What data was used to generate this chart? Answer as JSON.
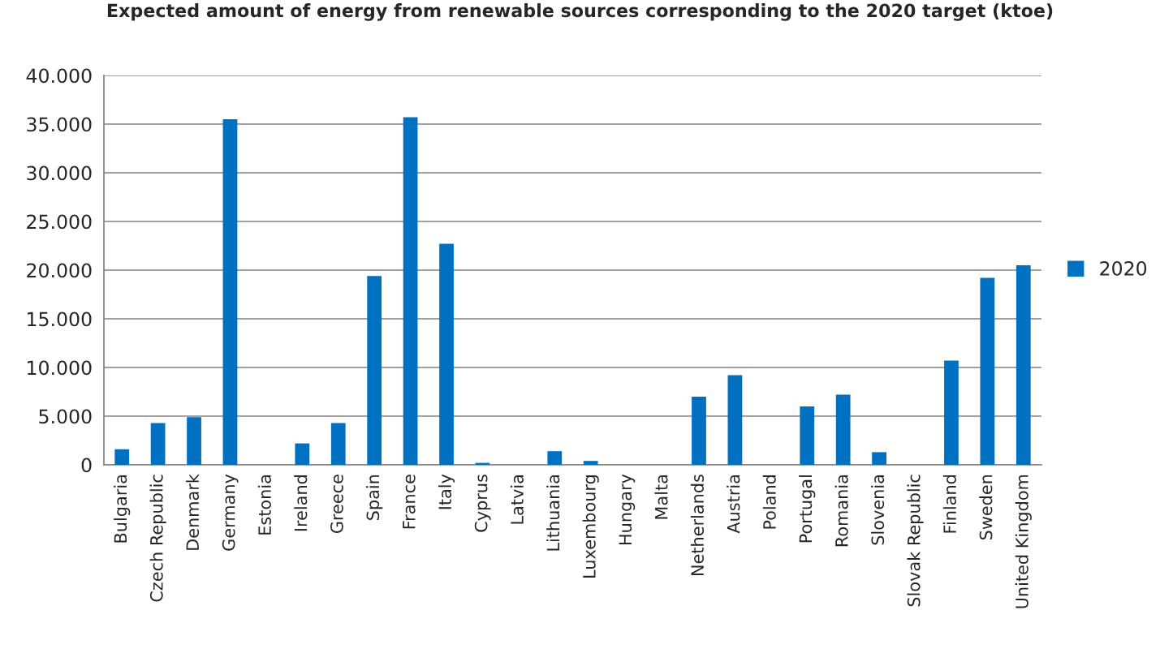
{
  "chart_data": {
    "type": "bar",
    "title": "Expected amount of energy from renewable sources corresponding to the 2020 target (ktoe)",
    "categories": [
      "Bulgaria",
      "Czech Republic",
      "Denmark",
      "Germany",
      "Estonia",
      "Ireland",
      "Greece",
      "Spain",
      "France",
      "Italy",
      "Cyprus",
      "Latvia",
      "Lithuania",
      "Luxembourg",
      "Hungary",
      "Malta",
      "Netherlands",
      "Austria",
      "Poland",
      "Portugal",
      "Romania",
      "Slovenia",
      "Slovak Republic",
      "Finland",
      "Sweden",
      "United Kingdom"
    ],
    "series": [
      {
        "name": "2020",
        "color": "#0070c0",
        "values": [
          1600,
          4300,
          4900,
          35500,
          null,
          2200,
          4300,
          19400,
          35700,
          22700,
          200,
          null,
          1400,
          400,
          null,
          null,
          7000,
          9200,
          null,
          6000,
          7200,
          1300,
          null,
          10700,
          19200,
          20500
        ]
      }
    ],
    "ylim": [
      0,
      40000
    ],
    "yticks": [
      0,
      {
        "value": 5000,
        "label": "5.000"
      },
      {
        "value": 10000,
        "label": "10.000"
      },
      {
        "value": 15000,
        "label": "15.000"
      },
      {
        "value": 20000,
        "label": "20.000"
      },
      {
        "value": 25000,
        "label": "25.000"
      },
      {
        "value": 30000,
        "label": "30.000"
      },
      {
        "value": 35000,
        "label": "35.000"
      },
      {
        "value": 40000,
        "label": "40.000"
      }
    ],
    "grid": "y",
    "legend": "right"
  }
}
